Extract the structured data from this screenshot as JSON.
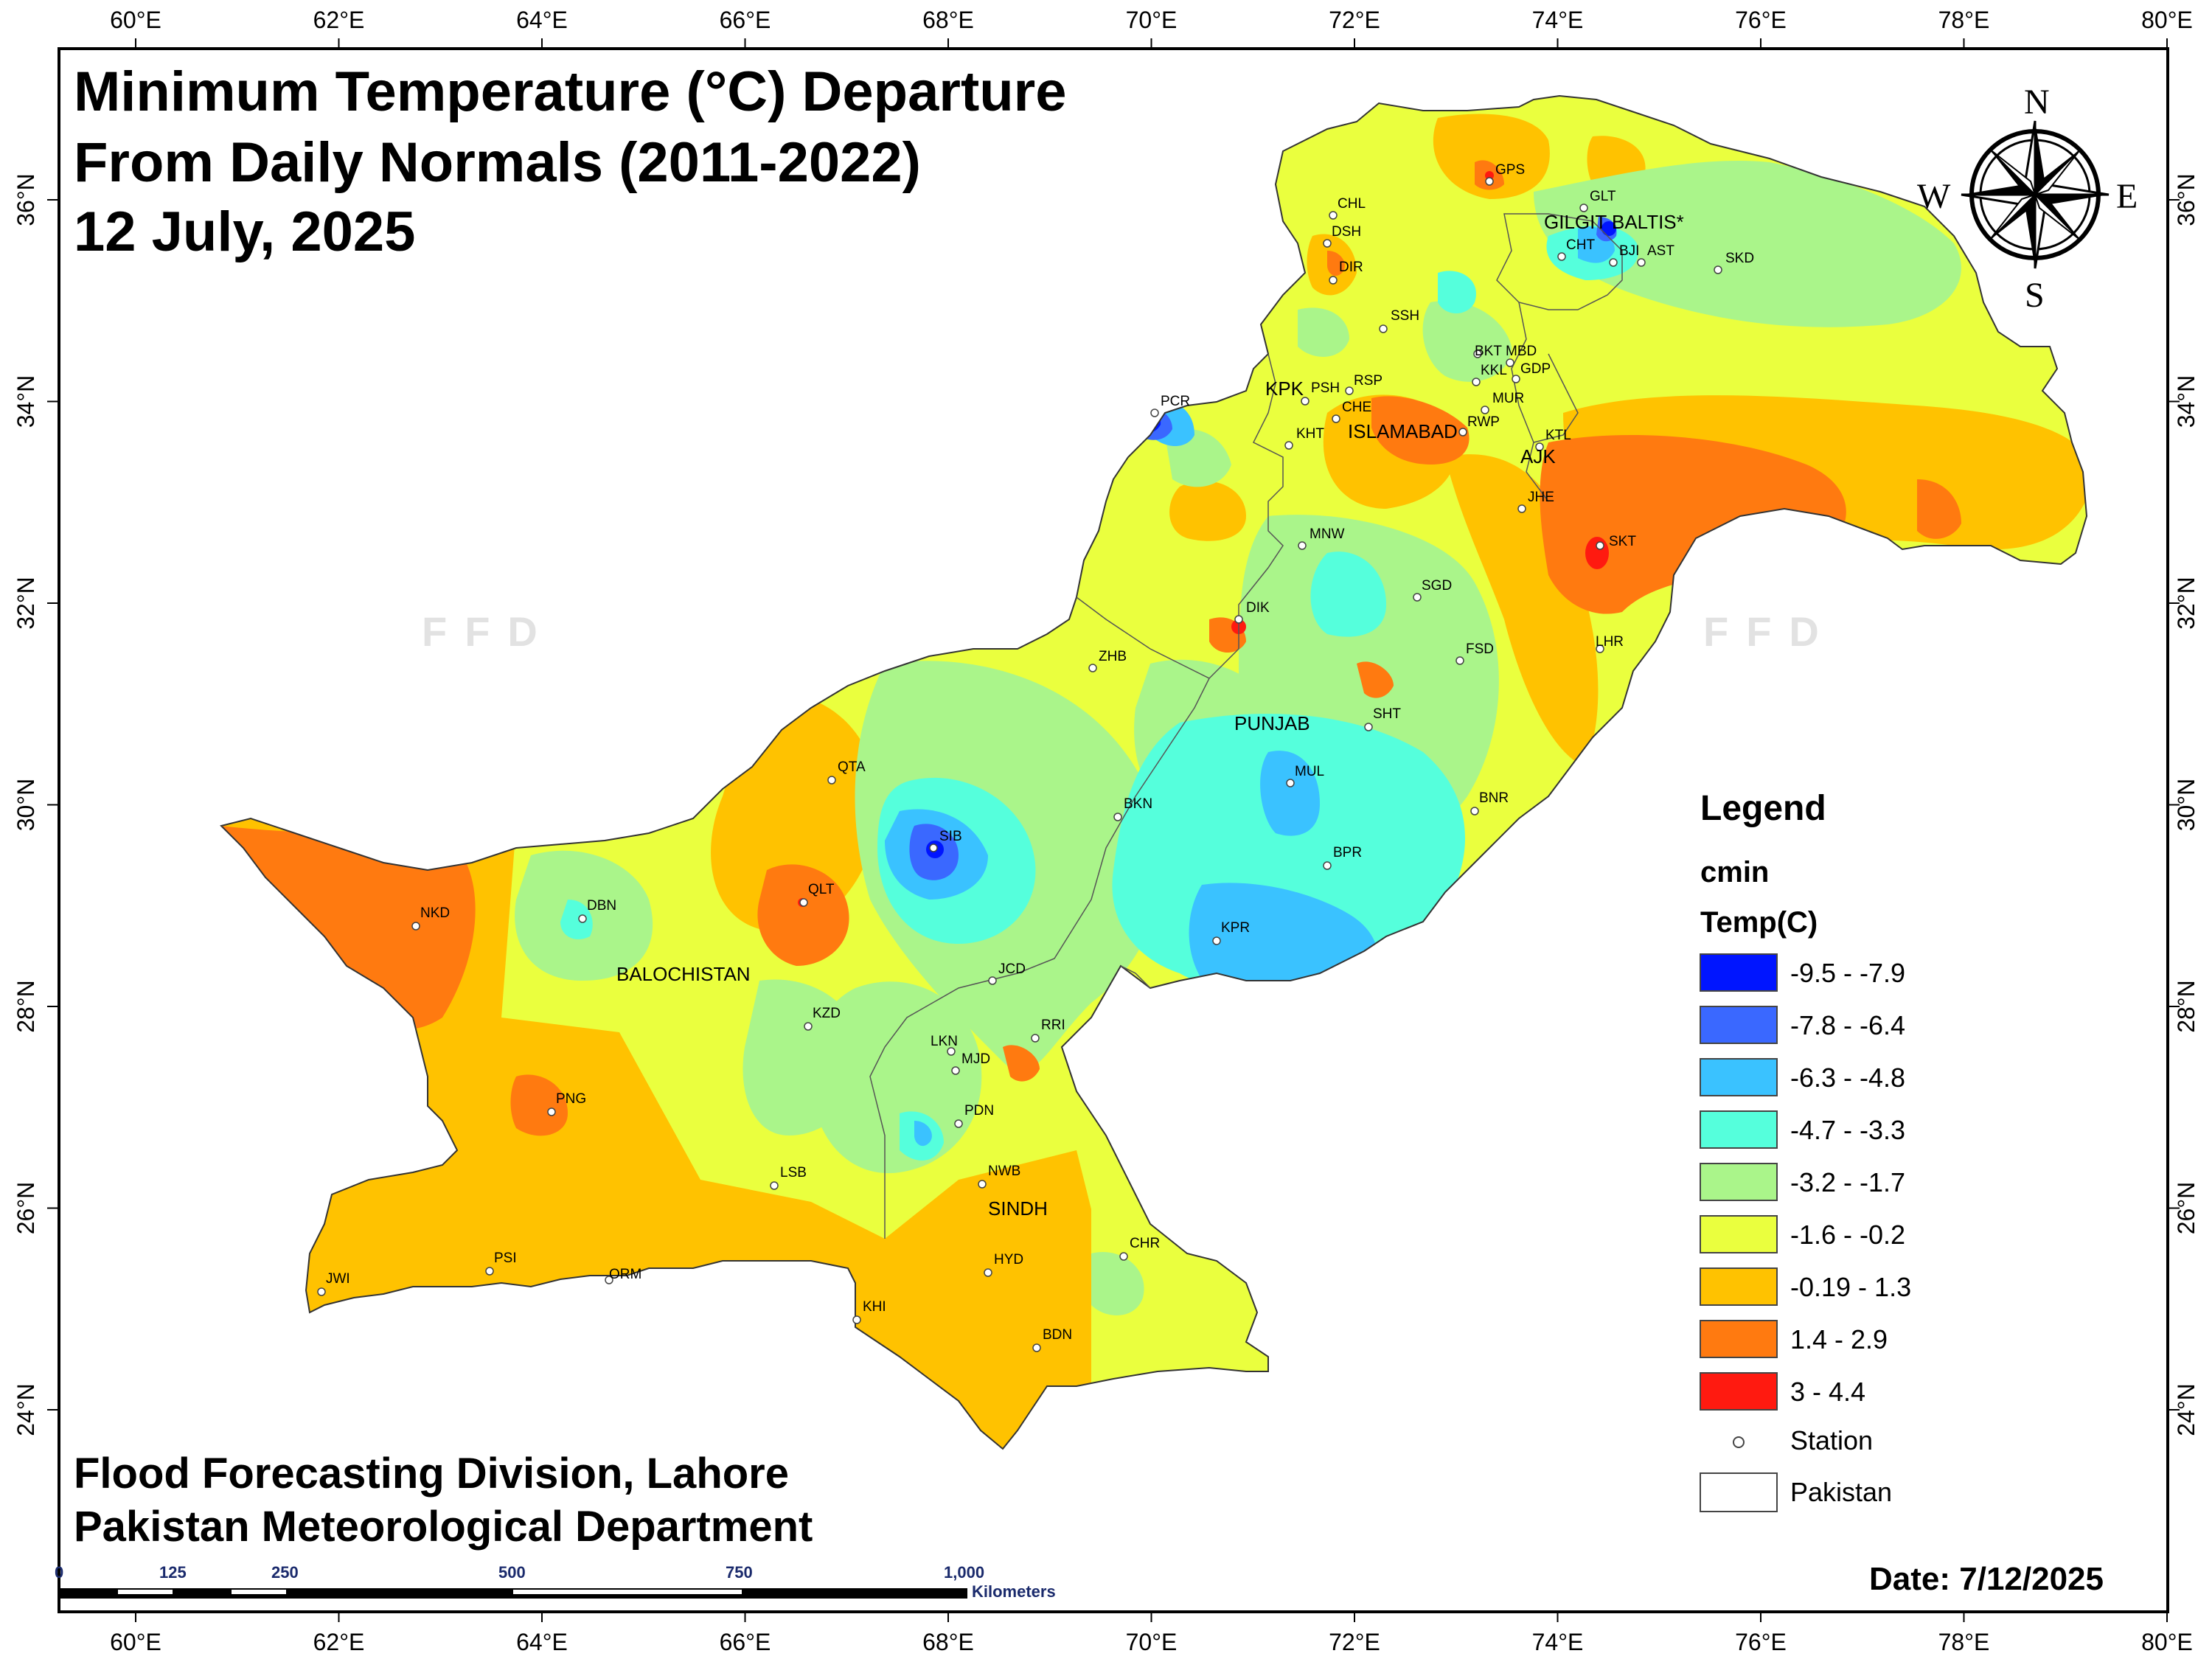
{
  "title": {
    "line1": "Minimum Temperature (°C) Departure",
    "line2": "From Daily Normals (2011-2022)",
    "line3": "12 July, 2025"
  },
  "footer": {
    "line1": "Flood Forecasting Division, Lahore",
    "line2": "Pakistan Meteorological Department"
  },
  "date_label": "Date: 7/12/2025",
  "watermark": "FFD",
  "axes": {
    "x_ticks": [
      "60°E",
      "62°E",
      "64°E",
      "66°E",
      "68°E",
      "70°E",
      "72°E",
      "74°E",
      "76°E",
      "78°E",
      "80°E"
    ],
    "y_ticks": [
      "24°N",
      "26°N",
      "28°N",
      "30°N",
      "32°N",
      "34°N",
      "36°N"
    ]
  },
  "compass": {
    "n": "N",
    "s": "S",
    "e": "E",
    "w": "W"
  },
  "regions": [
    "GILGIT BALTIS*",
    "KPK",
    "ISLAMABAD",
    "AJK",
    "PUNJAB",
    "BALOCHISTAN",
    "SINDH"
  ],
  "stations": [
    "CHL",
    "DSH",
    "DIR",
    "GPS",
    "GLT",
    "CHT",
    "BJI",
    "AST",
    "SKD",
    "SSH",
    "BKT",
    "MBD",
    "KKL",
    "GDP",
    "MUR",
    "PSH",
    "RSP",
    "CHE",
    "KHT",
    "RWP",
    "KTL",
    "JHE",
    "PCR",
    "MNW",
    "SKT",
    "SGD",
    "DIK",
    "ZHB",
    "FSD",
    "LHR",
    "SHT",
    "QTA",
    "MUL",
    "BNR",
    "BKN",
    "SIB",
    "BPR",
    "DBN",
    "QLT",
    "NKD",
    "KPR",
    "JCD",
    "KZD",
    "RRI",
    "LKN",
    "MJD",
    "PNG",
    "PDN",
    "LSB",
    "NWB",
    "CHR",
    "HYD",
    "PSI",
    "ORM",
    "JWI",
    "KHI",
    "BDN"
  ],
  "legend": {
    "heading": "Legend",
    "field": "cmin",
    "unit": "Temp(C)",
    "classes": [
      {
        "label": "-9.5 - -7.9",
        "color": "#0015ff"
      },
      {
        "label": "-7.8 - -6.4",
        "color": "#3a68ff"
      },
      {
        "label": "-6.3 - -4.8",
        "color": "#3ac2ff"
      },
      {
        "label": "-4.7 - -3.3",
        "color": "#55ffdc"
      },
      {
        "label": "-3.2 - -1.7",
        "color": "#aaf58a"
      },
      {
        "label": "-1.6 - -0.2",
        "color": "#eaff3e"
      },
      {
        "label": "-0.19 - 1.3",
        "color": "#ffc200"
      },
      {
        "label": "1.4 - 2.9",
        "color": "#ff7a10"
      },
      {
        "label": "3 - 4.4",
        "color": "#ff1a10"
      }
    ],
    "station_label": "Station",
    "pakistan_label": "Pakistan"
  },
  "scale_bar": {
    "ticks": [
      "0",
      "125",
      "250",
      "500",
      "750",
      "1,000"
    ],
    "unit": "Kilometers"
  }
}
